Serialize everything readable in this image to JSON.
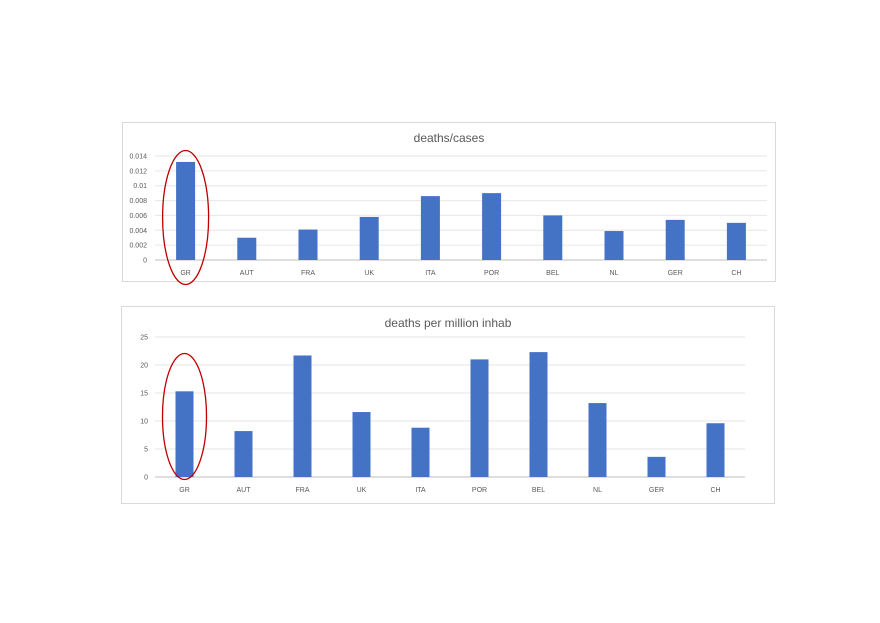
{
  "chart_data": [
    {
      "type": "bar",
      "title": "deaths/cases",
      "xlabel": "",
      "ylabel": "",
      "categories": [
        "GR",
        "AUT",
        "FRA",
        "UK",
        "ITA",
        "POR",
        "BEL",
        "NL",
        "GER",
        "CH"
      ],
      "values": [
        0.0132,
        0.003,
        0.0041,
        0.0058,
        0.0086,
        0.009,
        0.006,
        0.0039,
        0.0054,
        0.005
      ],
      "ylim": [
        0,
        0.014
      ],
      "yticks": [
        "0",
        "0.002",
        "0.004",
        "0.006",
        "0.008",
        "0.01",
        "0.012",
        "0.014"
      ],
      "grid": true,
      "bar_color": "#4472c4",
      "highlight": {
        "category": "GR",
        "shape": "ellipse",
        "color": "#c00000"
      }
    },
    {
      "type": "bar",
      "title": "deaths per million inhab",
      "xlabel": "",
      "ylabel": "",
      "categories": [
        "GR",
        "AUT",
        "FRA",
        "UK",
        "ITA",
        "POR",
        "BEL",
        "NL",
        "GER",
        "CH"
      ],
      "values": [
        15.3,
        8.2,
        21.7,
        11.6,
        8.8,
        21.0,
        22.3,
        13.2,
        3.6,
        9.6
      ],
      "ylim": [
        0,
        25
      ],
      "yticks": [
        "0",
        "5",
        "10",
        "15",
        "20",
        "25"
      ],
      "grid": true,
      "bar_color": "#4472c4",
      "highlight": {
        "category": "GR",
        "shape": "ellipse",
        "color": "#c00000"
      }
    }
  ]
}
